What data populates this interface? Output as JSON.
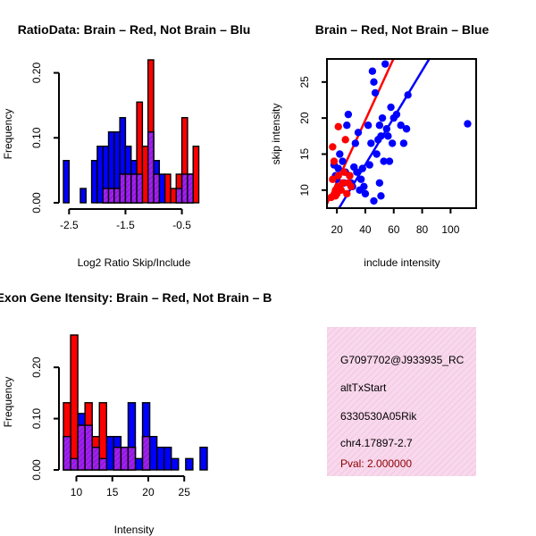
{
  "colors": {
    "red": "#ff0000",
    "blue": "#0000ff",
    "overlap": "#a020f0",
    "info_bg": "#f8d8ec",
    "info_hatch": "#efb6d8",
    "pval": "#8b0000"
  },
  "chart_data": [
    {
      "id": "ratio_hist",
      "type": "histogram",
      "title": "RatioData: Brain – Red, Not Brain – Blu",
      "xlabel": "Log2 Ratio Skip/Include",
      "ylabel": "Frequency",
      "xlim": [
        -2.6,
        -0.05
      ],
      "ylim": [
        0,
        0.22
      ],
      "bin_width": 0.1,
      "xticks": [
        -2.5,
        -1.5,
        -0.5
      ],
      "xtick_labels": [
        "-2.5",
        "-1.5",
        "-0.5"
      ],
      "yticks": [
        0,
        0.1,
        0.2
      ],
      "ytick_labels": [
        "0.00",
        "0.10",
        "0.20"
      ],
      "series": [
        {
          "name": "Not Brain",
          "color": "blue",
          "bins": [
            {
              "x0": -2.6,
              "value": 0.065
            },
            {
              "x0": -2.3,
              "value": 0.022
            },
            {
              "x0": -2.1,
              "value": 0.065
            },
            {
              "x0": -2.0,
              "value": 0.087
            },
            {
              "x0": -1.9,
              "value": 0.087
            },
            {
              "x0": -1.8,
              "value": 0.109
            },
            {
              "x0": -1.7,
              "value": 0.109
            },
            {
              "x0": -1.6,
              "value": 0.131
            },
            {
              "x0": -1.5,
              "value": 0.087
            },
            {
              "x0": -1.4,
              "value": 0.065
            },
            {
              "x0": -1.3,
              "value": 0.044
            },
            {
              "x0": -1.1,
              "value": 0.109
            },
            {
              "x0": -1.0,
              "value": 0.065
            },
            {
              "x0": -0.9,
              "value": 0.044
            },
            {
              "x0": -0.6,
              "value": 0.022
            },
            {
              "x0": -0.5,
              "value": 0.044
            },
            {
              "x0": -0.4,
              "value": 0.044
            }
          ]
        },
        {
          "name": "Brain",
          "color": "red",
          "bins": [
            {
              "x0": -1.9,
              "value": 0.022
            },
            {
              "x0": -1.8,
              "value": 0.022
            },
            {
              "x0": -1.7,
              "value": 0.022
            },
            {
              "x0": -1.6,
              "value": 0.044
            },
            {
              "x0": -1.5,
              "value": 0.044
            },
            {
              "x0": -1.4,
              "value": 0.044
            },
            {
              "x0": -1.3,
              "value": 0.155
            },
            {
              "x0": -1.2,
              "value": 0.087
            },
            {
              "x0": -1.1,
              "value": 0.22
            },
            {
              "x0": -1.0,
              "value": 0.044
            },
            {
              "x0": -0.8,
              "value": 0.044
            },
            {
              "x0": -0.7,
              "value": 0.022
            },
            {
              "x0": -0.6,
              "value": 0.044
            },
            {
              "x0": -0.5,
              "value": 0.131
            },
            {
              "x0": -0.4,
              "value": 0.044
            },
            {
              "x0": -0.3,
              "value": 0.087
            }
          ]
        }
      ]
    },
    {
      "id": "scatter",
      "type": "scatter",
      "title": "Brain – Red, Not Brain – Blue",
      "xlabel": "include intensity",
      "ylabel": "skip intensity",
      "xlim": [
        13,
        118
      ],
      "ylim": [
        7.5,
        28.2
      ],
      "xticks": [
        20,
        40,
        60,
        80,
        100
      ],
      "xtick_labels": [
        "20",
        "40",
        "60",
        "80",
        "100"
      ],
      "yticks": [
        10,
        15,
        20,
        25
      ],
      "ytick_labels": [
        "10",
        "15",
        "20",
        "25"
      ],
      "series": [
        {
          "name": "Not Brain",
          "color": "blue",
          "points": [
            [
              18,
              13.5
            ],
            [
              19,
              12.0
            ],
            [
              20,
              11.5
            ],
            [
              21,
              13.0
            ],
            [
              22,
              15.0
            ],
            [
              24,
              14.0
            ],
            [
              25,
              11.0
            ],
            [
              26,
              12.5
            ],
            [
              27,
              19.0
            ],
            [
              28,
              20.5
            ],
            [
              29,
              12.0
            ],
            [
              30,
              11.0
            ],
            [
              31,
              10.5
            ],
            [
              32,
              13.2
            ],
            [
              33,
              16.5
            ],
            [
              34,
              12.5
            ],
            [
              35,
              18.0
            ],
            [
              36,
              10.0
            ],
            [
              37,
              11.5
            ],
            [
              38,
              13.0
            ],
            [
              39,
              10.5
            ],
            [
              40,
              9.5
            ],
            [
              42,
              19.0
            ],
            [
              43,
              13.5
            ],
            [
              44,
              16.5
            ],
            [
              45,
              26.5
            ],
            [
              46,
              25.0
            ],
            [
              47,
              23.5
            ],
            [
              48,
              15.0
            ],
            [
              49,
              17.0
            ],
            [
              50,
              19.0
            ],
            [
              51,
              17.5
            ],
            [
              52,
              20.0
            ],
            [
              53,
              14.0
            ],
            [
              54,
              27.5
            ],
            [
              55,
              18.5
            ],
            [
              56,
              17.5
            ],
            [
              57,
              14.0
            ],
            [
              58,
              21.5
            ],
            [
              59,
              16.5
            ],
            [
              60,
              20.0
            ],
            [
              62,
              20.5
            ],
            [
              65,
              19.0
            ],
            [
              67,
              16.5
            ],
            [
              69,
              18.5
            ],
            [
              70,
              23.2
            ],
            [
              46,
              8.5
            ],
            [
              50,
              11.0
            ],
            [
              51,
              9.2
            ],
            [
              112,
              19.2
            ]
          ]
        },
        {
          "name": "Brain",
          "color": "red",
          "points": [
            [
              16,
              9.0
            ],
            [
              17,
              11.5
            ],
            [
              17,
              16.0
            ],
            [
              18,
              14.0
            ],
            [
              19,
              10.0
            ],
            [
              19,
              9.2
            ],
            [
              20,
              9.5
            ],
            [
              21,
              12.0
            ],
            [
              21,
              18.8
            ],
            [
              22,
              10.5
            ],
            [
              23,
              10.0
            ],
            [
              24,
              11.0
            ],
            [
              25,
              12.5
            ],
            [
              26,
              17.0
            ],
            [
              27,
              9.5
            ],
            [
              28,
              11.0
            ],
            [
              29,
              12.0
            ],
            [
              30,
              10.5
            ]
          ]
        }
      ],
      "fit_lines": [
        {
          "series": "Brain",
          "color": "red",
          "intercept": 2.5,
          "slope": 0.43
        },
        {
          "series": "Not Brain",
          "color": "blue",
          "intercept": 0.5,
          "slope": 0.326
        }
      ]
    },
    {
      "id": "intensity_hist",
      "type": "histogram",
      "title": "Exon Gene Itensity: Brain – Red, Not Brain – B",
      "xlabel": "Intensity",
      "ylabel": "Frequency",
      "xlim": [
        8.2,
        28.2
      ],
      "ylim": [
        0,
        0.27
      ],
      "bin_width": 1.0,
      "xticks": [
        10,
        15,
        20,
        25
      ],
      "xtick_labels": [
        "10",
        "15",
        "20",
        "25"
      ],
      "yticks": [
        0,
        0.1,
        0.2
      ],
      "ytick_labels": [
        "0.00",
        "0.10",
        "0.20"
      ],
      "series": [
        {
          "name": "Not Brain",
          "color": "blue",
          "bins": [
            {
              "x0": 8.2,
              "value": 0.065
            },
            {
              "x0": 9.2,
              "value": 0.022
            },
            {
              "x0": 10.2,
              "value": 0.11
            },
            {
              "x0": 11.2,
              "value": 0.087
            },
            {
              "x0": 12.2,
              "value": 0.044
            },
            {
              "x0": 13.2,
              "value": 0.022
            },
            {
              "x0": 14.2,
              "value": 0.065
            },
            {
              "x0": 15.2,
              "value": 0.065
            },
            {
              "x0": 16.2,
              "value": 0.044
            },
            {
              "x0": 17.2,
              "value": 0.131
            },
            {
              "x0": 18.2,
              "value": 0.022
            },
            {
              "x0": 19.2,
              "value": 0.131
            },
            {
              "x0": 20.2,
              "value": 0.065
            },
            {
              "x0": 21.2,
              "value": 0.044
            },
            {
              "x0": 22.2,
              "value": 0.044
            },
            {
              "x0": 23.2,
              "value": 0.022
            },
            {
              "x0": 25.2,
              "value": 0.022
            },
            {
              "x0": 27.2,
              "value": 0.044
            }
          ]
        },
        {
          "name": "Brain",
          "color": "red",
          "bins": [
            {
              "x0": 8.2,
              "value": 0.131
            },
            {
              "x0": 9.2,
              "value": 0.263
            },
            {
              "x0": 10.2,
              "value": 0.087
            },
            {
              "x0": 11.2,
              "value": 0.131
            },
            {
              "x0": 12.2,
              "value": 0.065
            },
            {
              "x0": 13.2,
              "value": 0.131
            },
            {
              "x0": 15.2,
              "value": 0.044
            },
            {
              "x0": 16.2,
              "value": 0.044
            },
            {
              "x0": 17.2,
              "value": 0.044
            },
            {
              "x0": 19.2,
              "value": 0.065
            }
          ]
        }
      ]
    }
  ],
  "info_panel": {
    "gene_id": "G7097702@J933935_RC",
    "event_type": "altTxStart",
    "symbol": "6330530A05Rik",
    "location": "chr4.17897-2.7",
    "pval": "Pval: 2.000000"
  }
}
